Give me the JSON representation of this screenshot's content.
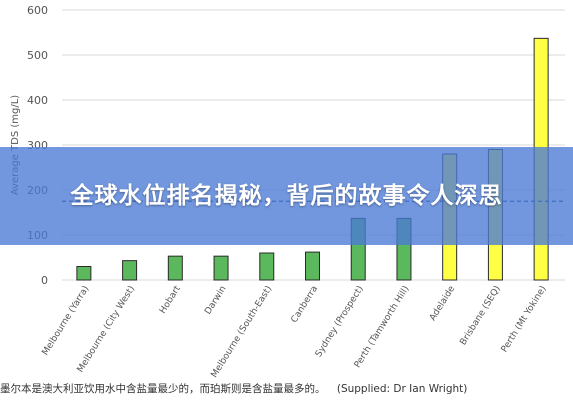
{
  "chart_data": {
    "type": "bar",
    "categories": [
      "Melbourne (Yarra)",
      "Melbourne (City West)",
      "Hobart",
      "Darwin",
      "Melbourne (South-East)",
      "Canberra",
      "Sydney (Prospect)",
      "Perth (Tamworth Hill)",
      "Adelaide",
      "Brisbane (SEQ)",
      "Perth (Mt Yokine)"
    ],
    "values": [
      30,
      43,
      53,
      53,
      60,
      62,
      137,
      137,
      280,
      290,
      537
    ],
    "bar_colors": [
      "#5cb85c",
      "#5cb85c",
      "#5cb85c",
      "#5cb85c",
      "#5cb85c",
      "#5cb85c",
      "#5cb85c",
      "#5cb85c",
      "#ffff44",
      "#ffff44",
      "#ffff44"
    ],
    "ylabel": "Average TDS (mg/L)",
    "ylim": [
      0,
      600
    ],
    "yticks": [
      0,
      100,
      200,
      300,
      400,
      500,
      600
    ],
    "reference_line": 175,
    "grid": true
  },
  "banner": {
    "title": "全球水位排名揭秘，背后的故事令人深思"
  },
  "caption": {
    "text": "墨尔本是澳大利亚饮用水中含盐量最少的，而珀斯则是含盐量最多的。",
    "credit": "(Supplied: Dr Ian Wright)"
  }
}
